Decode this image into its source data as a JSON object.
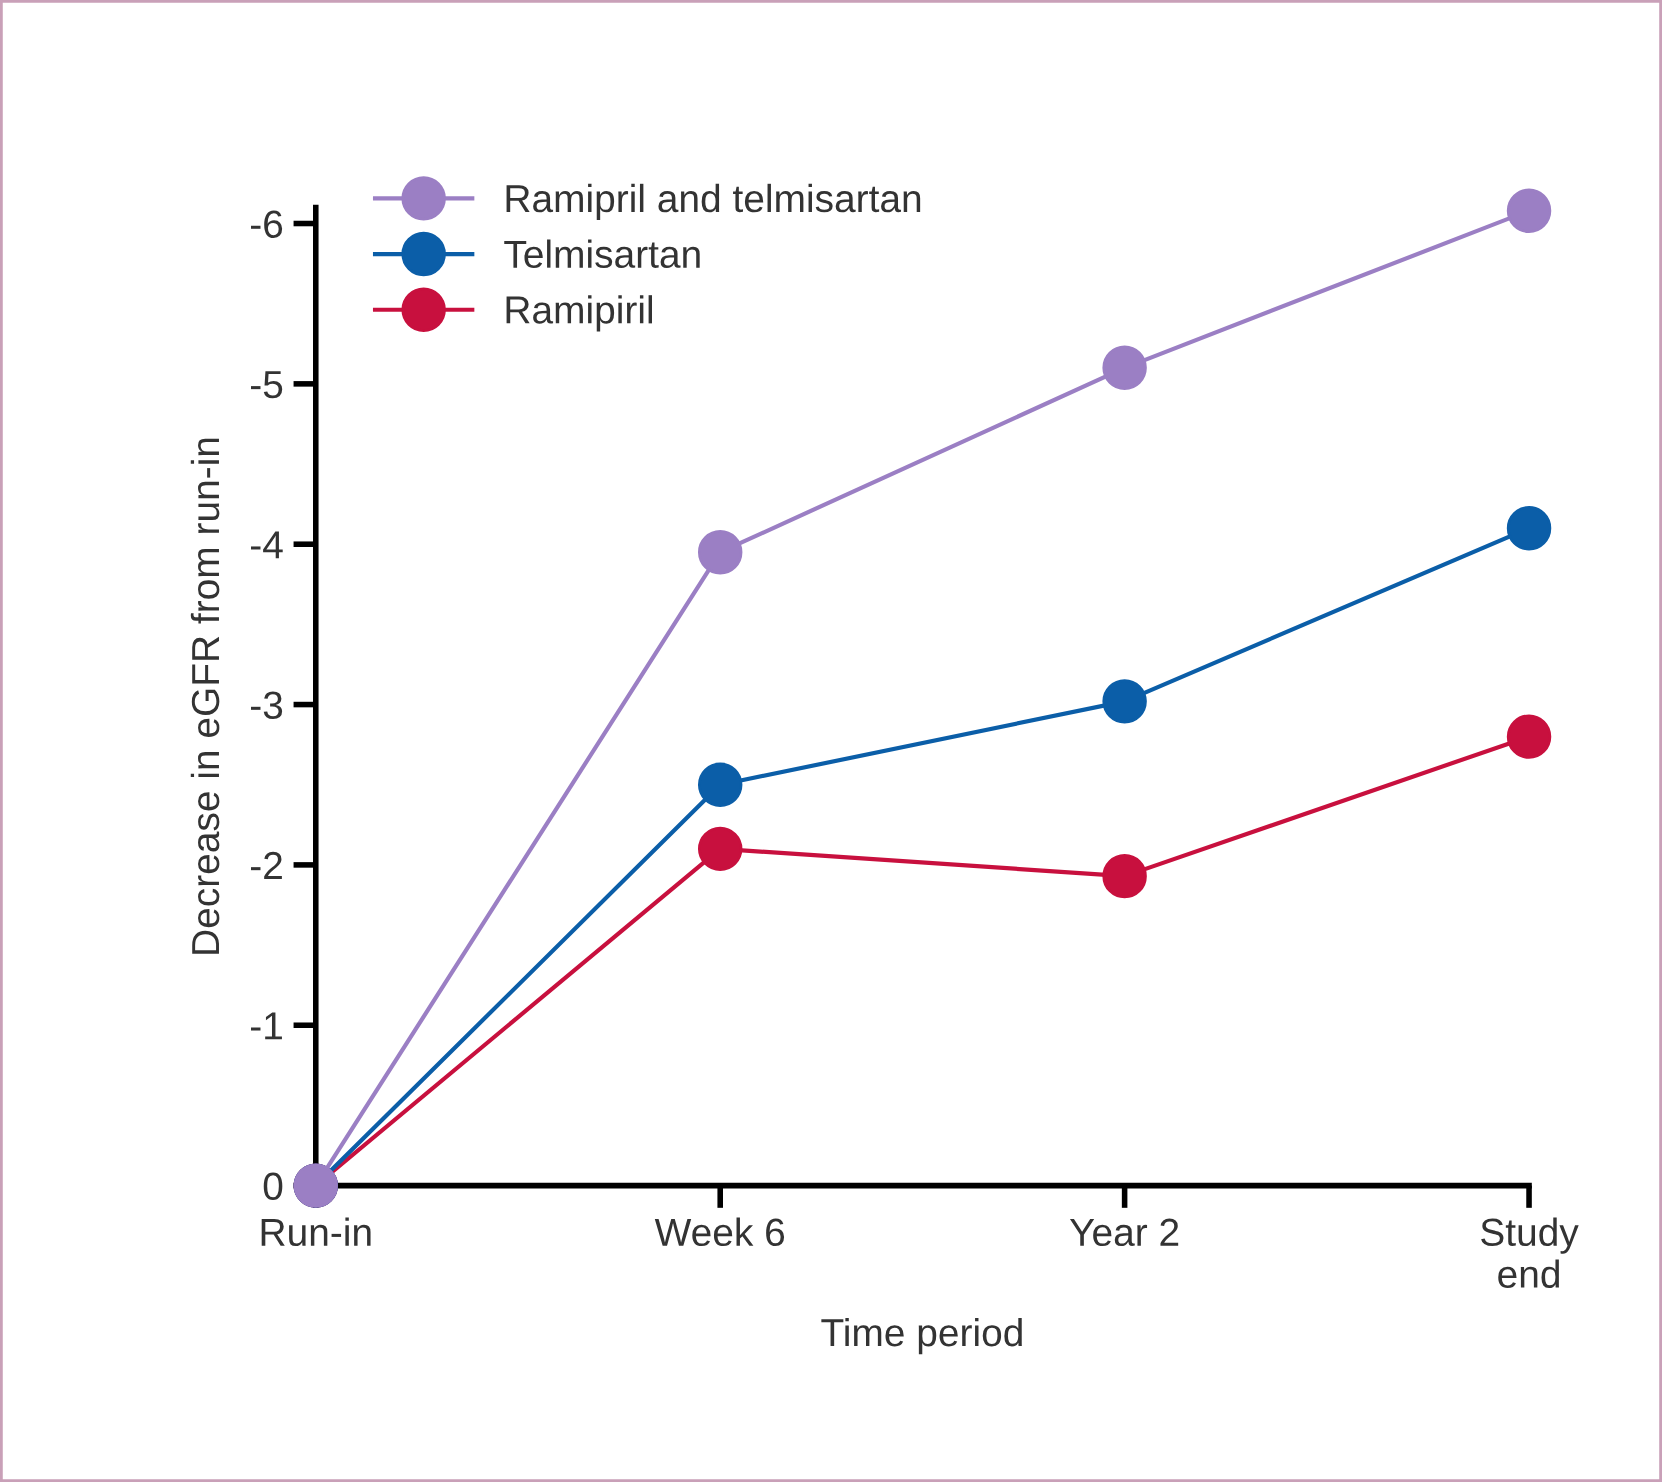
{
  "chart_data": {
    "type": "line",
    "xlabel": "Time period",
    "ylabel": "Decrease in eGFR from run-in",
    "categories": [
      "Run-in",
      "Week 6",
      "Year 2",
      "Study\nend"
    ],
    "series": [
      {
        "name": "Ramipril and telmisartan",
        "color": "#9b7fc4",
        "values": [
          0,
          -3.95,
          -5.1,
          -6.08
        ]
      },
      {
        "name": "Telmisartan",
        "color": "#0b5ea8",
        "values": [
          0,
          -2.5,
          -3.02,
          -4.1
        ]
      },
      {
        "name": "Ramipiril",
        "color": "#c8103e",
        "values": [
          0,
          -2.1,
          -1.93,
          -2.8
        ]
      }
    ],
    "ylim": [
      0,
      -6.1
    ],
    "yticks": [
      0,
      -1,
      -2,
      -3,
      -4,
      -5,
      -6
    ],
    "grid": false,
    "legend": "top left",
    "marker": "circle",
    "line_style": "solid"
  }
}
